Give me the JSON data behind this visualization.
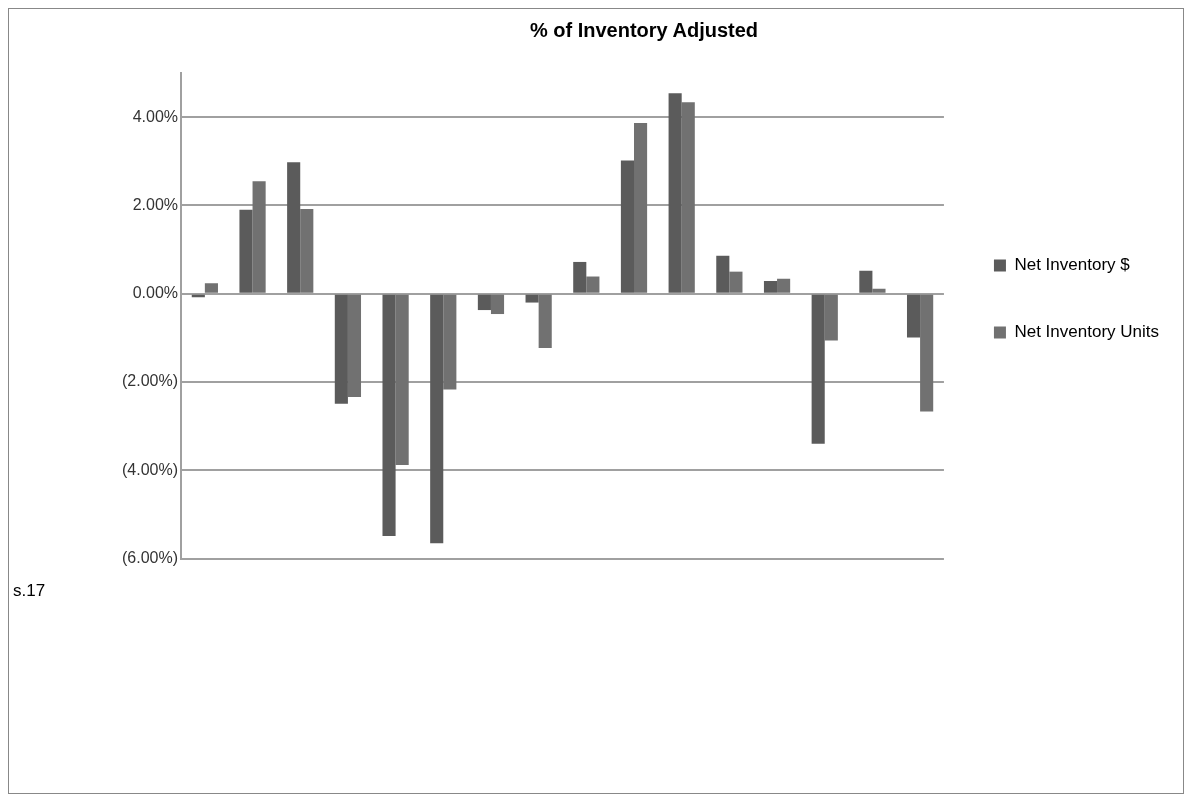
{
  "chart_data": {
    "type": "bar",
    "title": "% of Inventory Adjusted",
    "categories": [
      null,
      null,
      null,
      null,
      null,
      null,
      null,
      null,
      null,
      null,
      null,
      null,
      null,
      null,
      null,
      null
    ],
    "series": [
      {
        "name": "Net Inventory $",
        "color": "#5b5b5b",
        "values": [
          -0.08,
          1.9,
          2.98,
          -2.49,
          -5.49,
          -5.65,
          -0.37,
          -0.2,
          0.72,
          3.02,
          4.54,
          0.86,
          0.29,
          -3.4,
          0.52,
          -0.99
        ]
      },
      {
        "name": "Net Inventory Units",
        "color": "#717171",
        "values": [
          0.24,
          2.55,
          1.92,
          -2.34,
          -3.88,
          -2.17,
          -0.46,
          -1.23,
          0.39,
          3.87,
          4.34,
          0.5,
          0.34,
          -1.06,
          0.11,
          -2.67
        ]
      }
    ],
    "ylim": [
      -6,
      5
    ],
    "yticks": [
      {
        "value": -6,
        "label": "(6.00%)"
      },
      {
        "value": -4,
        "label": "(4.00%)"
      },
      {
        "value": -2,
        "label": "(2.00%)"
      },
      {
        "value": 0,
        "label": "0.00%"
      },
      {
        "value": 2,
        "label": "2.00%"
      },
      {
        "value": 4,
        "label": "4.00%"
      }
    ],
    "grid": "y",
    "legend": "right",
    "annotations": [
      "s.17"
    ]
  }
}
